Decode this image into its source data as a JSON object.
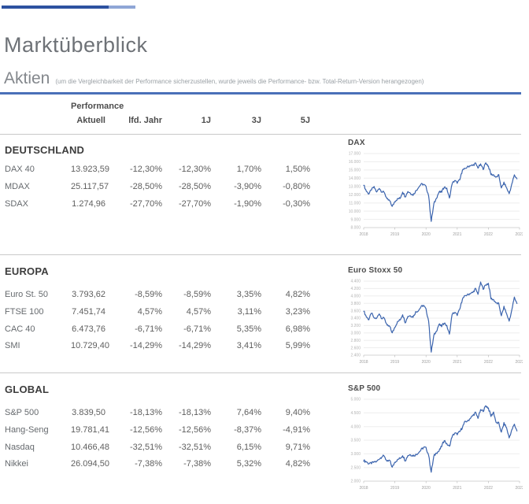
{
  "page": {
    "title": "Marktüberblick",
    "section_heading": "Aktien",
    "section_note": "(um die Vergleichbarkeit der Performance sicherzustellen, wurde jeweils die Performance- bzw. Total-Return-Version herangezogen)"
  },
  "colors": {
    "accent_rule": "#4a70b8",
    "brand_bar_dark": "#2d52a0",
    "brand_bar_light": "#8fa6d6",
    "chart_line": "#3a63ad",
    "divider": "#c9c9c9"
  },
  "table": {
    "group_header": "Performance",
    "columns": [
      "Aktuell",
      "lfd. Jahr",
      "1J",
      "3J",
      "5J"
    ],
    "sections": [
      {
        "title": "DEUTSCHLAND",
        "rows": [
          {
            "name": "DAX 40",
            "values": [
              "13.923,59",
              "-12,30%",
              "-12,30%",
              "1,70%",
              "1,50%"
            ]
          },
          {
            "name": "MDAX",
            "values": [
              "25.117,57",
              "-28,50%",
              "-28,50%",
              "-3,90%",
              "-0,80%"
            ]
          },
          {
            "name": "SDAX",
            "values": [
              "1.274,96",
              "-27,70%",
              "-27,70%",
              "-1,90%",
              "-0,30%"
            ]
          }
        ]
      },
      {
        "title": "EUROPA",
        "rows": [
          {
            "name": "Euro St. 50",
            "values": [
              "3.793,62",
              "-8,59%",
              "-8,59%",
              "3,35%",
              "4,82%"
            ]
          },
          {
            "name": "FTSE 100",
            "values": [
              "7.451,74",
              "4,57%",
              "4,57%",
              "3,11%",
              "3,23%"
            ]
          },
          {
            "name": "CAC 40",
            "values": [
              "6.473,76",
              "-6,71%",
              "-6,71%",
              "5,35%",
              "6,98%"
            ]
          },
          {
            "name": "SMI",
            "values": [
              "10.729,40",
              "-14,29%",
              "-14,29%",
              "3,41%",
              "5,99%"
            ]
          }
        ]
      },
      {
        "title": "GLOBAL",
        "rows": [
          {
            "name": "S&P 500",
            "values": [
              "3.839,50",
              "-18,13%",
              "-18,13%",
              "7,64%",
              "9,40%"
            ]
          },
          {
            "name": "Hang-Seng",
            "values": [
              "19.781,41",
              "-12,56%",
              "-12,56%",
              "-8,37%",
              "-4,91%"
            ]
          },
          {
            "name": "Nasdaq",
            "values": [
              "10.466,48",
              "-32,51%",
              "-32,51%",
              "6,15%",
              "9,71%"
            ]
          },
          {
            "name": "Nikkei",
            "values": [
              "26.094,50",
              "-7,38%",
              "-7,38%",
              "5,32%",
              "4,82%"
            ]
          }
        ]
      }
    ]
  },
  "chart_data": [
    {
      "id": "dax",
      "type": "line",
      "title": "DAX",
      "xlabel": "",
      "ylabel": "",
      "grid": true,
      "ylim": [
        8000,
        17000
      ],
      "y_step": 1000,
      "x_tick_labels": [
        "2018",
        "2019",
        "2020",
        "2021",
        "2022",
        "2023"
      ],
      "line_color": "#3a63ad",
      "values": [
        13200,
        12450,
        12100,
        12600,
        12950,
        12300,
        12800,
        12350,
        12250,
        11450,
        11250,
        10560,
        11200,
        11500,
        11550,
        12350,
        11750,
        12400,
        12200,
        11950,
        12450,
        12850,
        13250,
        13250,
        12980,
        11890,
        8750,
        10860,
        11590,
        12310,
        12310,
        12945,
        12760,
        11560,
        13290,
        13720,
        13430,
        13790,
        15010,
        15135,
        15420,
        15530,
        15540,
        15835,
        15260,
        15690,
        15100,
        15885,
        15470,
        14460,
        14415,
        14100,
        14390,
        12780,
        13480,
        12835,
        12115,
        13255,
        14390,
        13925
      ]
    },
    {
      "id": "euro-stoxx-50",
      "type": "line",
      "title": "Euro Stoxx 50",
      "xlabel": "",
      "ylabel": "",
      "grid": true,
      "ylim": [
        2400,
        4400
      ],
      "y_step": 200,
      "x_tick_labels": [
        "2018",
        "2019",
        "2020",
        "2021",
        "2022",
        "2023"
      ],
      "line_color": "#3a63ad",
      "values": [
        3600,
        3440,
        3360,
        3540,
        3400,
        3395,
        3525,
        3390,
        3400,
        3200,
        3175,
        3000,
        3160,
        3300,
        3350,
        3500,
        3280,
        3450,
        3470,
        3430,
        3570,
        3600,
        3700,
        3745,
        3640,
        3325,
        2480,
        2930,
        3050,
        3235,
        3175,
        3275,
        3195,
        2960,
        3495,
        3555,
        3480,
        3640,
        3920,
        4000,
        4040,
        4065,
        4090,
        4200,
        4050,
        4365,
        4190,
        4300,
        4340,
        3925,
        3900,
        3805,
        3790,
        3455,
        3710,
        3520,
        3320,
        3610,
        3965,
        3795
      ]
    },
    {
      "id": "sp-500",
      "type": "line",
      "title": "S&P 500",
      "xlabel": "",
      "ylabel": "",
      "grid": true,
      "ylim": [
        2000,
        5000
      ],
      "y_step": 500,
      "x_tick_labels": [
        "2018",
        "2019",
        "2020",
        "2021",
        "2022",
        "2023"
      ],
      "line_color": "#3a63ad",
      "values": [
        2750,
        2715,
        2640,
        2650,
        2705,
        2720,
        2815,
        2900,
        2915,
        2710,
        2760,
        2505,
        2705,
        2785,
        2835,
        2945,
        2750,
        2940,
        2980,
        2925,
        2975,
        3035,
        3140,
        3230,
        3225,
        2955,
        2330,
        2910,
        3045,
        3100,
        3270,
        3500,
        3365,
        3270,
        3620,
        3755,
        3715,
        3810,
        3975,
        4180,
        4205,
        4300,
        4395,
        4520,
        4310,
        4605,
        4565,
        4765,
        4680,
        4375,
        4530,
        4130,
        4130,
        3785,
        4130,
        3955,
        3585,
        3870,
        4080,
        3840
      ]
    }
  ]
}
